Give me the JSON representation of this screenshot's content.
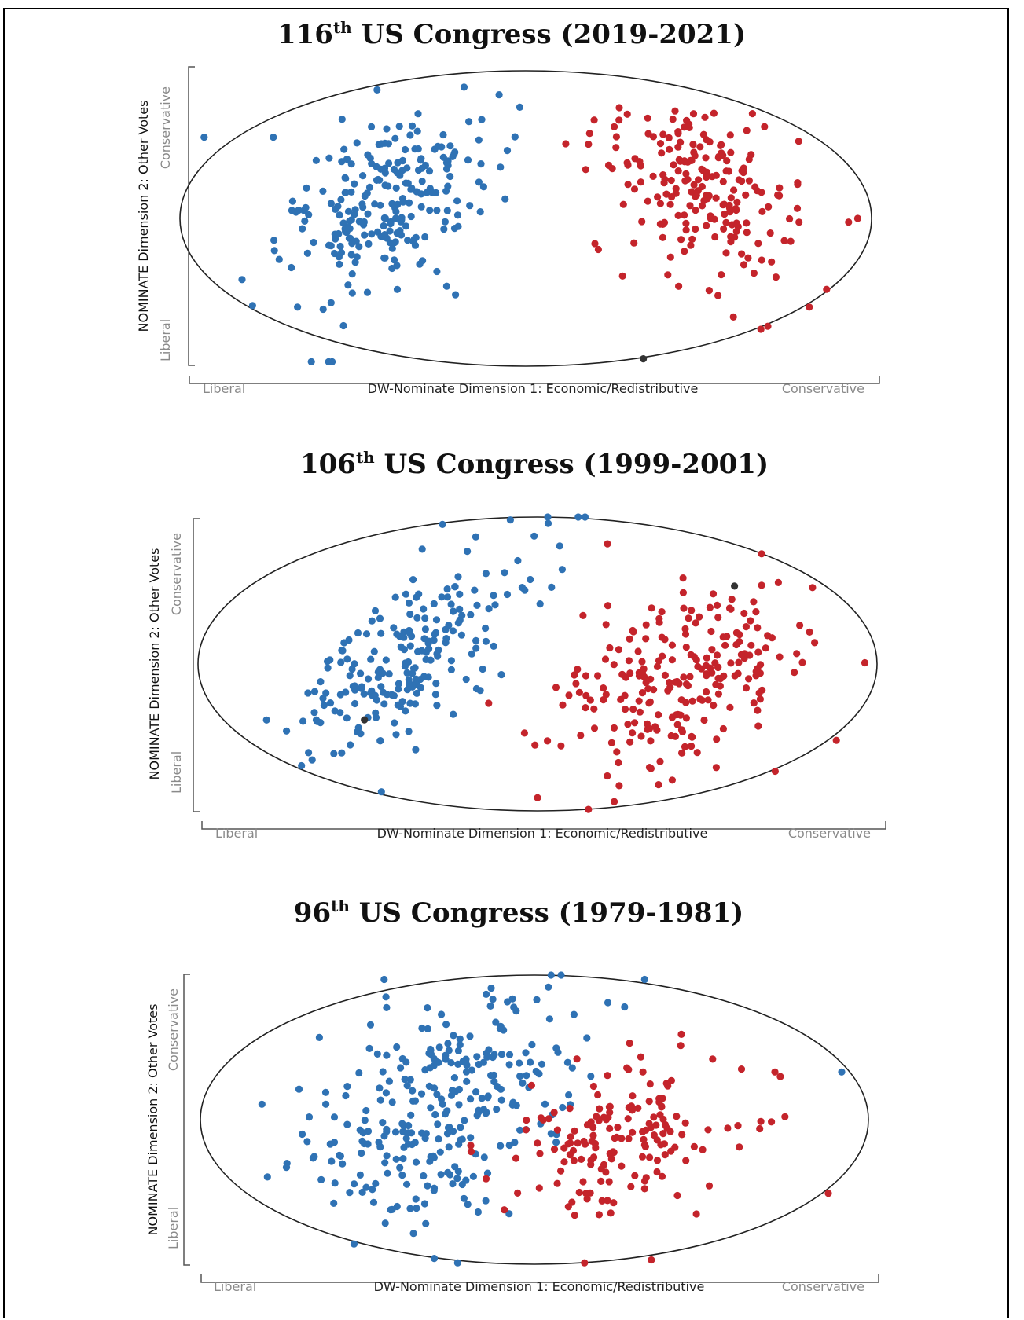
{
  "colors": {
    "democrat": "#2f72b4",
    "republican": "#c4242b",
    "independent": "#333333",
    "ellipse": "#222222",
    "bracket": "#555555"
  },
  "chart_data": [
    {
      "type": "scatter",
      "title_ordinal": "116",
      "title_suffix": "th",
      "title_rest": " US Congress (2019-2021)",
      "xlabel": "DW-Nominate Dimension 1: Economic/Redistributive",
      "x_low_label": "Liberal",
      "x_high_label": "Conservative",
      "ylabel": "NOMINATE Dimension 2: Other Votes",
      "y_low_label": "Liberal",
      "y_high_label": "Conservative",
      "xlim": [
        -1,
        1
      ],
      "ylim": [
        -1,
        1
      ],
      "grid": false,
      "series": [
        {
          "party": "democrat",
          "cx": -0.41,
          "cy": 0.1,
          "sx": 0.15,
          "sy": 0.3,
          "rho": 0.45,
          "n": 232,
          "seed": 116,
          "extra": [
            [
              -0.62,
              -0.97
            ],
            [
              -0.57,
              -0.97
            ],
            [
              -0.56,
              -0.97
            ],
            [
              -0.73,
              0.55
            ],
            [
              -0.93,
              0.55
            ],
            [
              -0.66,
              -0.6
            ],
            [
              -0.79,
              -0.59
            ],
            [
              -0.43,
              0.87
            ]
          ]
        },
        {
          "party": "republican",
          "cx": 0.52,
          "cy": 0.18,
          "sx": 0.13,
          "sy": 0.3,
          "rho": -0.35,
          "n": 199,
          "seed": 216,
          "extra": [
            [
              0.96,
              0.0
            ],
            [
              0.87,
              -0.48
            ],
            [
              0.82,
              -0.6
            ],
            [
              0.7,
              -0.73
            ],
            [
              0.68,
              -0.75
            ],
            [
              0.2,
              -0.17
            ],
            [
              0.21,
              -0.21
            ],
            [
              0.28,
              -0.39
            ]
          ]
        },
        {
          "party": "independent",
          "points": [
            [
              0.34,
              -0.95
            ]
          ]
        }
      ]
    },
    {
      "type": "scatter",
      "title_ordinal": "106",
      "title_suffix": "th",
      "title_rest": " US Congress (1999-2001)",
      "xlabel": "DW-Nominate Dimension 1: Economic/Redistributive",
      "x_low_label": "Liberal",
      "x_high_label": "Conservative",
      "ylabel": "NOMINATE Dimension 2: Other Votes",
      "y_low_label": "Liberal",
      "y_high_label": "Conservative",
      "xlim": [
        -1,
        1
      ],
      "ylim": [
        -1,
        1
      ],
      "grid": false,
      "series": [
        {
          "party": "democrat",
          "cx": -0.38,
          "cy": 0.05,
          "sx": 0.16,
          "sy": 0.32,
          "rho": 0.62,
          "n": 209,
          "seed": 106,
          "extra": [
            [
              -0.28,
              0.95
            ],
            [
              -0.08,
              0.98
            ],
            [
              0.03,
              1.0
            ],
            [
              0.12,
              1.0
            ],
            [
              0.14,
              1.0
            ],
            [
              -0.01,
              0.87
            ],
            [
              -0.46,
              -0.87
            ],
            [
              -0.6,
              -0.61
            ]
          ]
        },
        {
          "party": "republican",
          "cx": 0.41,
          "cy": -0.1,
          "sx": 0.16,
          "sy": 0.3,
          "rho": 0.4,
          "n": 222,
          "seed": 206,
          "extra": [
            [
              0.66,
              0.75
            ],
            [
              0.81,
              0.52
            ],
            [
              0.88,
              -0.52
            ],
            [
              0.7,
              -0.73
            ],
            [
              0.15,
              -0.99
            ],
            [
              0.0,
              -0.91
            ],
            [
              0.65,
              0.08
            ],
            [
              0.78,
              0.01
            ]
          ]
        },
        {
          "party": "independent",
          "points": [
            [
              0.58,
              0.53
            ],
            [
              -0.51,
              -0.38
            ]
          ]
        }
      ]
    },
    {
      "type": "scatter",
      "title_ordinal": "96",
      "title_suffix": "th",
      "title_rest": " US Congress (1979-1981)",
      "xlabel": "DW-Nominate Dimension 1: Economic/Redistributive",
      "x_low_label": "Liberal",
      "x_high_label": "Conservative",
      "ylabel": "NOMINATE Dimension 2: Other Votes",
      "y_low_label": "Liberal",
      "y_high_label": "Conservative",
      "xlim": [
        -1,
        1
      ],
      "ylim": [
        -1,
        1
      ],
      "grid": false,
      "series": [
        {
          "party": "democrat",
          "cx": -0.27,
          "cy": 0.12,
          "sx": 0.2,
          "sy": 0.42,
          "rho": 0.4,
          "n": 276,
          "seed": 96,
          "extra": [
            [
              -0.23,
              -0.99
            ],
            [
              -0.54,
              -0.86
            ],
            [
              -0.3,
              -0.96
            ],
            [
              -0.45,
              0.97
            ],
            [
              0.05,
              1.0
            ],
            [
              0.08,
              1.0
            ],
            [
              0.33,
              0.97
            ],
            [
              0.92,
              0.33
            ],
            [
              0.27,
              0.78
            ],
            [
              0.22,
              0.81
            ]
          ]
        },
        {
          "party": "republican",
          "cx": 0.27,
          "cy": -0.13,
          "sx": 0.18,
          "sy": 0.26,
          "rho": 0.35,
          "n": 158,
          "seed": 196,
          "extra": [
            [
              0.88,
              -0.51
            ],
            [
              0.15,
              -0.99
            ],
            [
              0.35,
              -0.97
            ],
            [
              0.44,
              0.59
            ],
            [
              0.62,
              0.35
            ],
            [
              0.72,
              0.33
            ],
            [
              0.75,
              0.02
            ],
            [
              0.52,
              -0.07
            ]
          ]
        }
      ]
    }
  ]
}
